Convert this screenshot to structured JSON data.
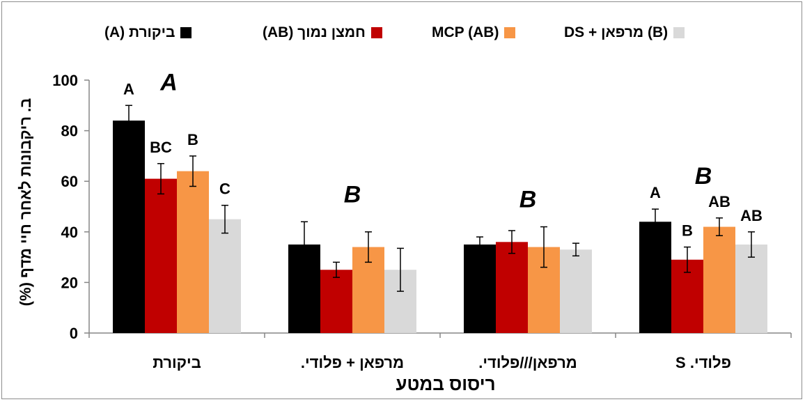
{
  "chart_data": {
    "type": "bar",
    "xlabel": "ריסוס במטע",
    "ylabel": "ב. ריקבונות לאחר חיי מדף (%)",
    "ylim": [
      0,
      100
    ],
    "yticks": [
      0,
      20,
      40,
      60,
      80,
      100
    ],
    "categories": [
      "ביקורת",
      "מרפאן + פלודי.",
      "מרפאן///פלודי.",
      "פלודי. S"
    ],
    "series": [
      {
        "name": "ביקורת (A)",
        "color": "#000000",
        "values": [
          84,
          35,
          35,
          44
        ],
        "errors": [
          6,
          9,
          3,
          5
        ],
        "labels": [
          "A",
          "",
          "",
          "A"
        ]
      },
      {
        "name": "חמצן נמוך (AB)",
        "color": "#c00000",
        "values": [
          61,
          25,
          36,
          29
        ],
        "errors": [
          6,
          3,
          4.5,
          5
        ],
        "labels": [
          "BC",
          "",
          "",
          "B"
        ]
      },
      {
        "name": "MCP (AB)",
        "color": "#f79646",
        "values": [
          64,
          34,
          34,
          42
        ],
        "errors": [
          6,
          6,
          8,
          3.5
        ],
        "labels": [
          "B",
          "",
          "",
          "AB"
        ]
      },
      {
        "name": "DS + מרפאן (B)",
        "color": "#d9d9d9",
        "values": [
          45,
          25,
          33,
          35
        ],
        "errors": [
          5.5,
          8.5,
          2.5,
          5
        ],
        "labels": [
          "C",
          "",
          "",
          "AB"
        ]
      }
    ],
    "group_letters": [
      "A",
      "B",
      "B",
      "B"
    ],
    "legend_position": "top",
    "grid": false
  }
}
